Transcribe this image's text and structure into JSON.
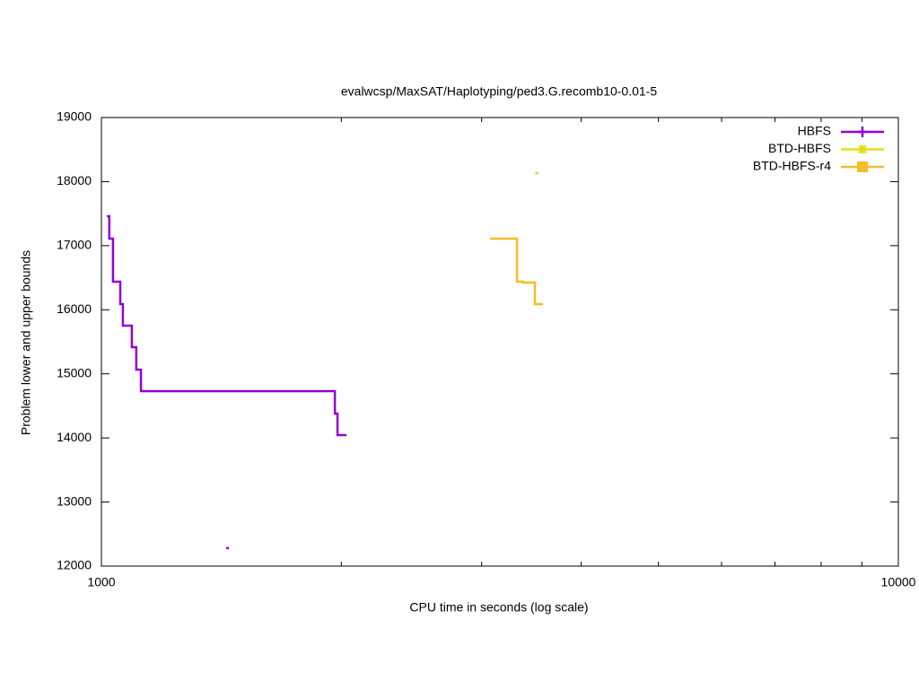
{
  "chart_data": {
    "type": "line",
    "step": true,
    "title": "evalwcsp/MaxSAT/Haplotyping/ped3.G.recomb10-0.01-5",
    "x_label": "CPU time in seconds (log scale)",
    "y_label": "Problem lower and upper bounds",
    "xlog": true,
    "xlim": [
      1000,
      10000
    ],
    "xticks": [
      1000,
      10000
    ],
    "xminorticks": [
      2000,
      3000,
      4000,
      5000,
      6000,
      7000,
      8000,
      9000
    ],
    "ylim": [
      12000,
      19000
    ],
    "yticks": [
      12000,
      13000,
      14000,
      15000,
      16000,
      17000,
      18000,
      19000
    ],
    "legend": "top-right",
    "series": [
      {
        "name": "HBFS",
        "color": "#9400d3",
        "marker": "plus",
        "x": [
          1016,
          1023,
          1034,
          1056,
          1064,
          1092,
          1106,
          1121,
          1963,
          1978,
          2030,
          1008,
          1434
        ],
        "values": [
          17460,
          17110,
          16438,
          16088,
          15752,
          15416,
          15066,
          14730,
          14380,
          14044,
          14044,
          null,
          12280
        ]
      },
      {
        "name": "BTD-HBFS",
        "color": "#e0e010",
        "marker": "star",
        "x": [],
        "values": []
      },
      {
        "name": "BTD-HBFS-r4",
        "color": "#f6bd2a",
        "marker": "square",
        "x": [
          3074,
          3323,
          3382,
          3499,
          3581,
          3499,
          3503
        ],
        "values": [
          17110,
          16438,
          16424,
          16088,
          16088,
          null,
          18132
        ]
      }
    ]
  }
}
